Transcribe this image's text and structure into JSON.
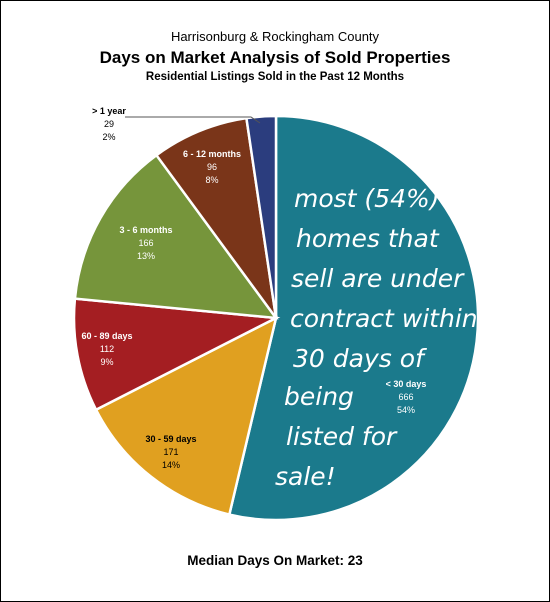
{
  "header": {
    "supertitle": "Harrisonburg & Rockingham County",
    "title": "Days on Market Analysis of Sold Properties",
    "subtitle": "Residential Listings Sold in the Past 12 Months"
  },
  "footer": {
    "label": "Median Days On Market:",
    "value": "23"
  },
  "note_lines": [
    "most (54%)",
    "homes that",
    "sell are under",
    "contract within",
    "30 days of",
    "being",
    "listed for",
    "sale!"
  ],
  "chart_data": {
    "type": "pie",
    "slices": [
      {
        "label": "< 30 days",
        "value": 666,
        "percent": "54%",
        "color": "#1b7a8c"
      },
      {
        "label": "30 - 59 days",
        "value": 171,
        "percent": "14%",
        "color": "#e0a020"
      },
      {
        "label": "60 - 89 days",
        "value": 112,
        "percent": "9%",
        "color": "#a41e22"
      },
      {
        "label": "3 - 6 months",
        "value": 166,
        "percent": "13%",
        "color": "#76953b"
      },
      {
        "label": "6 - 12 months",
        "value": 96,
        "percent": "8%",
        "color": "#7a3519"
      },
      {
        "label": "> 1 year",
        "value": 29,
        "percent": "2%",
        "color": "#2b3d7e"
      }
    ]
  }
}
